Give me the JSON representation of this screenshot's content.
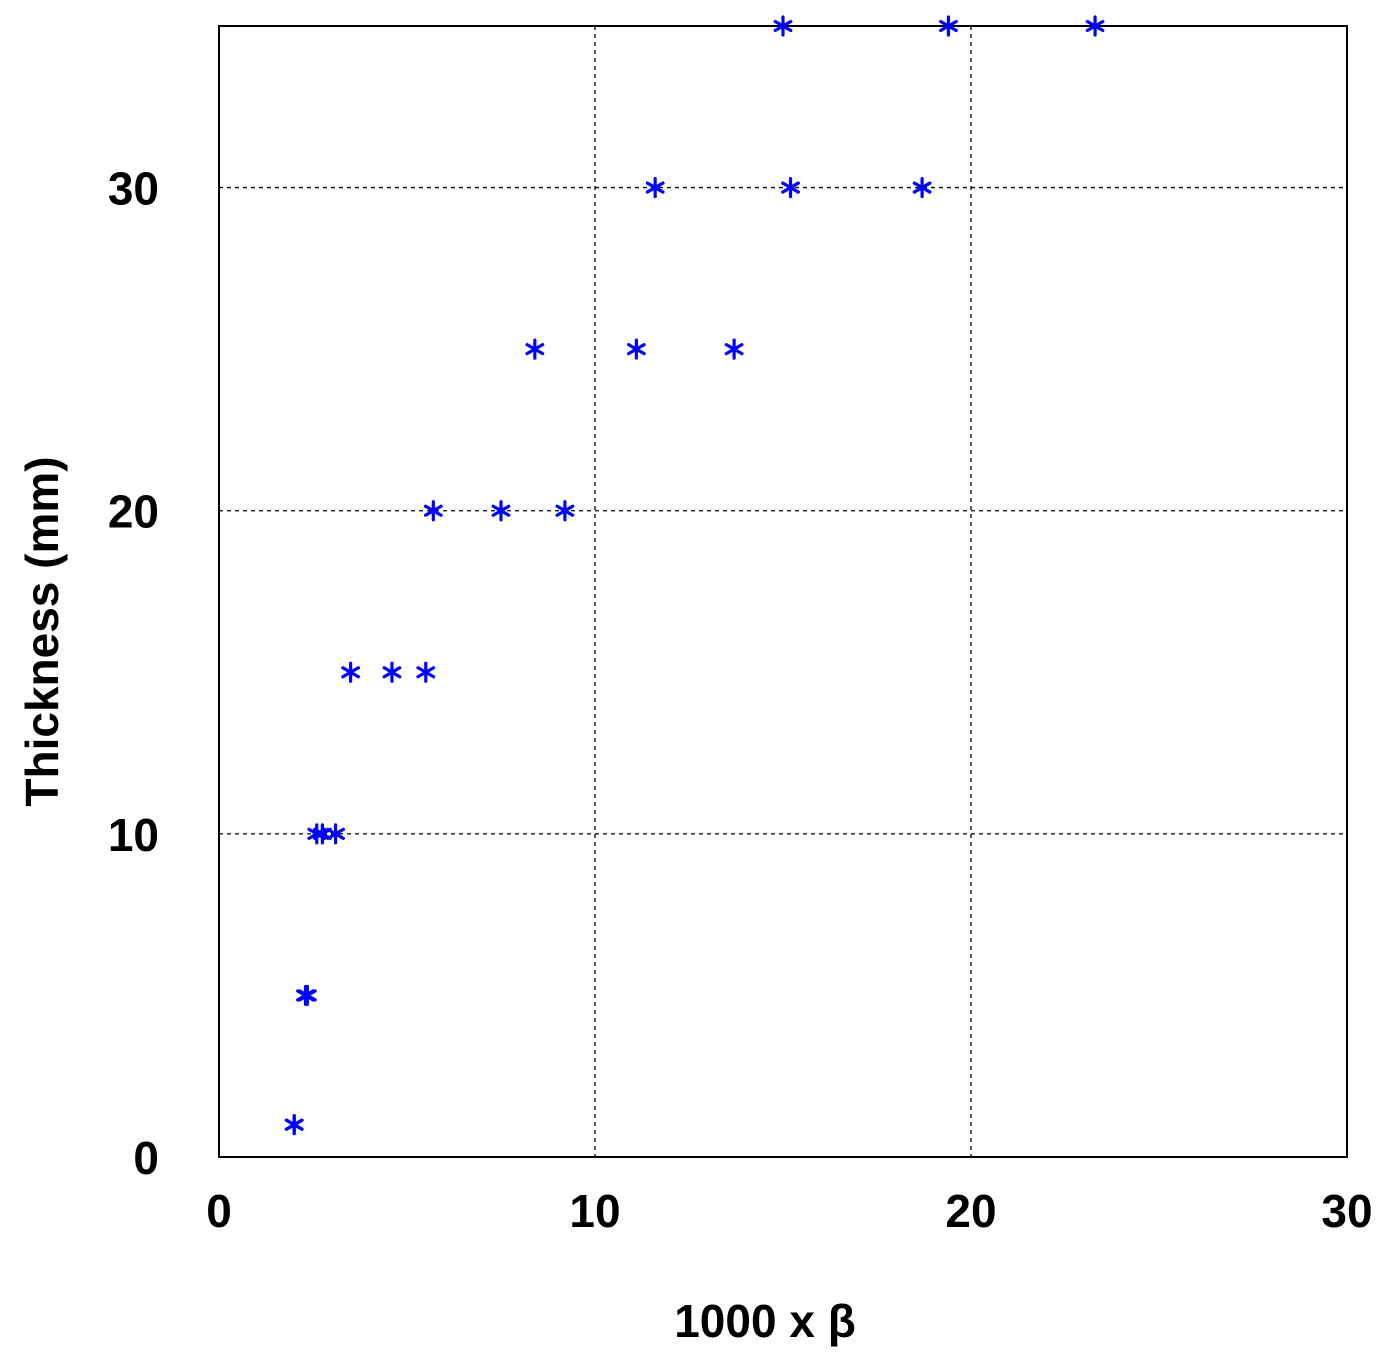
{
  "chart_data": {
    "type": "scatter",
    "title": "",
    "xlabel": "1000 x β",
    "ylabel": "Thickness (mm)",
    "xlim": [
      0,
      30
    ],
    "ylim": [
      0,
      35
    ],
    "xticks": [
      0,
      10,
      20,
      30
    ],
    "yticks": [
      0,
      10,
      20,
      30
    ],
    "xtick_labels": [
      "0",
      "10",
      "20",
      "30"
    ],
    "ytick_labels": [
      "0",
      "10",
      "20",
      "30"
    ],
    "grid": true,
    "marker": "asterisk",
    "marker_color": "#0000ff",
    "series": [
      {
        "x": [
          2.0,
          2.0,
          2.3,
          2.35,
          2.6,
          2.75,
          3.1,
          3.5,
          4.6,
          5.5,
          5.7,
          7.5,
          9.2,
          8.4,
          11.1,
          13.7,
          11.6,
          15.2,
          18.7,
          15.0,
          19.4,
          23.3
        ],
        "y": [
          1,
          1,
          5,
          5,
          10,
          10,
          10,
          15,
          15,
          15,
          20,
          20,
          20,
          25,
          25,
          25,
          30,
          30,
          30,
          35,
          35,
          35
        ]
      }
    ]
  }
}
